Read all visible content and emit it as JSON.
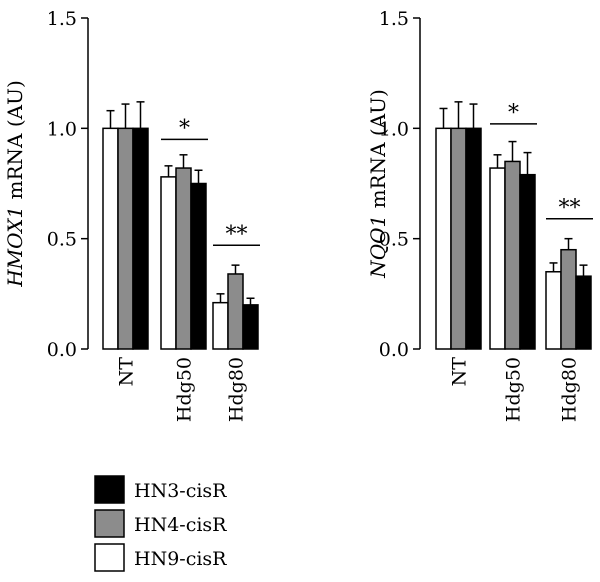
{
  "chart_data": [
    {
      "type": "bar",
      "ylabel_italic": "HMOX1",
      "ylabel_rest": " mRNA (AU)",
      "ylim": [
        0,
        1.5
      ],
      "yticks": [
        "0.0",
        "0.5",
        "1.0",
        "1.5"
      ],
      "categories": [
        "NT",
        "Hdg50",
        "Hdg80"
      ],
      "series": [
        {
          "name": "HN9-cisR",
          "values": [
            1.0,
            0.78,
            0.21
          ],
          "errors": [
            0.08,
            0.05,
            0.04
          ]
        },
        {
          "name": "HN4-cisR",
          "values": [
            1.0,
            0.82,
            0.34
          ],
          "errors": [
            0.11,
            0.06,
            0.04
          ]
        },
        {
          "name": "HN3-cisR",
          "values": [
            1.0,
            0.75,
            0.2
          ],
          "errors": [
            0.12,
            0.06,
            0.03
          ]
        }
      ],
      "significance": [
        {
          "category": "Hdg50",
          "label": "*",
          "y": 0.95
        },
        {
          "category": "Hdg80",
          "label": "**",
          "y": 0.47
        }
      ]
    },
    {
      "type": "bar",
      "ylabel_italic": "NQO1",
      "ylabel_rest": " mRNA (AU)",
      "ylim": [
        0,
        1.5
      ],
      "yticks": [
        "0.0",
        "0.5",
        "1.0",
        "1.5"
      ],
      "categories": [
        "NT",
        "Hdg50",
        "Hdg80"
      ],
      "series": [
        {
          "name": "HN9-cisR",
          "values": [
            1.0,
            0.82,
            0.35
          ],
          "errors": [
            0.09,
            0.06,
            0.04
          ]
        },
        {
          "name": "HN4-cisR",
          "values": [
            1.0,
            0.85,
            0.45
          ],
          "errors": [
            0.12,
            0.09,
            0.05
          ]
        },
        {
          "name": "HN3-cisR",
          "values": [
            1.0,
            0.79,
            0.33
          ],
          "errors": [
            0.11,
            0.1,
            0.05
          ]
        }
      ],
      "significance": [
        {
          "category": "Hdg50",
          "label": "*",
          "y": 1.02
        },
        {
          "category": "Hdg80",
          "label": "**",
          "y": 0.59
        }
      ]
    }
  ],
  "legend": [
    {
      "label": "HN3-cisR",
      "color": "#000000"
    },
    {
      "label": "HN4-cisR",
      "color": "#8c8c8c"
    },
    {
      "label": "HN9-cisR",
      "color": "#ffffff"
    }
  ],
  "series_colors": {
    "HN9-cisR": "#ffffff",
    "HN4-cisR": "#8c8c8c",
    "HN3-cisR": "#000000"
  }
}
